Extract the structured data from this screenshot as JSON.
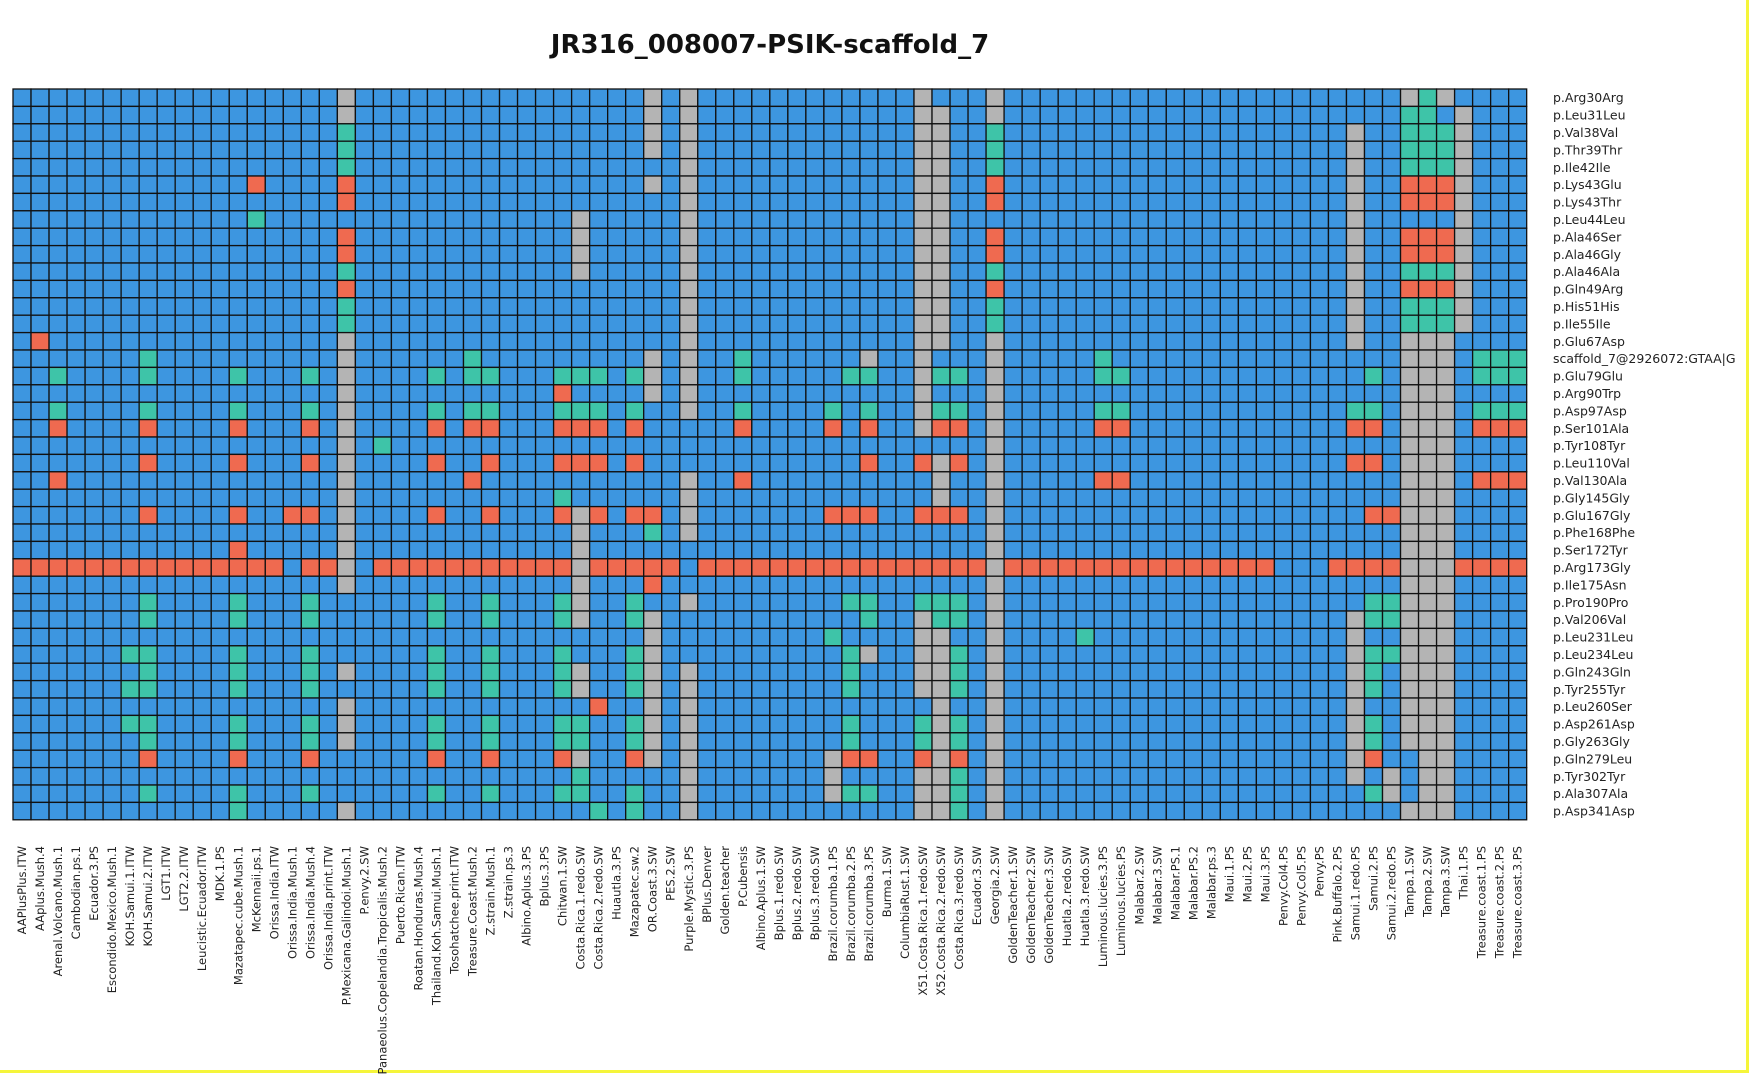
{
  "chart_data": {
    "type": "heatmap",
    "title": "JR316_008007-PSIK-scaffold_7",
    "colors": {
      "blue": "#3d96e0",
      "green": "#3ec4a8",
      "red": "#ef6a50",
      "gray": "#b4b4b4",
      "grid": "#111111"
    },
    "default_color": "blue",
    "columns": [
      "AAPlusPlus.ITW",
      "AAplus.Mush.4",
      "Arenal.Volcano.Mush.1",
      "Cambodian.ps.1",
      "Ecuador.3.PS",
      "Escondido.Mexico.Mush.1",
      "KOH.Samui.1.ITW",
      "KOH.Samui.2.ITW",
      "LGT1.ITW",
      "LGT2.2.ITW",
      "Leucistic.Ecuador.ITW",
      "MDK.1.PS",
      "Mazatapec.cube.Mush.1",
      "McKennaii.ps.1",
      "Orissa.India.ITW",
      "Orissa.India.Mush.1",
      "Orissa.India.Mush.4",
      "Orissa.India.print.ITW",
      "P.Mexicana.Galindoi.Mush.1",
      "P.envy.2.SW",
      "Panaeolus.Copelandia.Tropicalis.Mush.2",
      "Puerto.Rican.ITW",
      "Roatan.Honduras.Mush.4",
      "Thailand.Koh.Samui.Mush.1",
      "Tosohatchee.print.ITW",
      "Treasure.Coast.Mush.2",
      "Z.strain.Mush.1",
      "Z.strain.ps.3",
      "Albino.Aplus.3.PS",
      "Bplus.3.PS",
      "Chitwan.1.SW",
      "Costa.Rica.1.redo.SW",
      "Costa.Rica.2.redo.SW",
      "Huautla.3.PS",
      "Mazapatec.sw.2",
      "OR.Coast.3.SW",
      "PES.2.SW",
      "Purple.Mystic.3.PS",
      "BPlus.Denver",
      "Golden.teacher",
      "P.Cubensis",
      "Albino.Aplus.1.SW",
      "Bplus.1.redo.SW",
      "Bplus.2.redo.SW",
      "Bplus.3.redo.SW",
      "Brazil.corumba.1.PS",
      "Brazil.corumba.2.PS",
      "Brazil.corumba.3.PS",
      "Burma.1.SW",
      "ColumbiaRust.1.SW",
      "X51.Costa.Rica.1.redo.SW",
      "X52.Costa.Rica.2.redo.SW",
      "Costa.Rica.3.redo.SW",
      "Ecuador.3.SW",
      "Georgia.2.SW",
      "GoldenTeacher.1.SW",
      "GoldenTeacher.2.SW",
      "GoldenTeacher.3.SW",
      "Huatla.2.redo.SW",
      "Huatla.3.redo.SW",
      "Luminous.lucies.3.PS",
      "Luminous.lucies.PS",
      "Malabar.2.SW",
      "Malabar.3.SW",
      "Malabar.PS.1",
      "Malabar.PS.2",
      "Malabar.ps.3",
      "Maui.1.PS",
      "Maui.2.PS",
      "Maui.3.PS",
      "Penvy.Col4.PS",
      "Penvy.Col5.PS",
      "Penvy.PS",
      "Pink.Buffalo.2.PS",
      "Samui.1.redo.PS",
      "Samui.2.PS",
      "Samui.2.redo.PS",
      "Tampa.1.SW",
      "Tampa.2.SW",
      "Tampa.3.SW",
      "Thai.1.PS",
      "Treasure.coast.1.PS",
      "Treasure.coast.2.PS",
      "Treasure.coast.3.PS"
    ],
    "rows": [
      {
        "label": "p.Arg30Arg",
        "green": [
          79
        ],
        "red": [],
        "gray": [
          19,
          36,
          38,
          51,
          55,
          78,
          80
        ]
      },
      {
        "label": "p.Leu31Leu",
        "green": [
          78,
          79
        ],
        "red": [],
        "gray": [
          19,
          36,
          38,
          51,
          52,
          55,
          81
        ]
      },
      {
        "label": "p.Val38Val",
        "green": [
          19,
          55,
          78,
          79,
          80
        ],
        "red": [],
        "gray": [
          36,
          38,
          51,
          52,
          75,
          81
        ]
      },
      {
        "label": "p.Thr39Thr",
        "green": [
          19,
          55,
          78,
          79,
          80
        ],
        "red": [],
        "gray": [
          36,
          38,
          51,
          52,
          75,
          81
        ]
      },
      {
        "label": "p.Ile42Ile",
        "green": [
          19,
          55,
          78,
          79,
          80
        ],
        "red": [],
        "gray": [
          38,
          51,
          52,
          75,
          81
        ]
      },
      {
        "label": "p.Lys43Glu",
        "green": [],
        "red": [
          14,
          19,
          55,
          78,
          79,
          80
        ],
        "gray": [
          36,
          38,
          51,
          52,
          75,
          81
        ]
      },
      {
        "label": "p.Lys43Thr",
        "green": [],
        "red": [
          19,
          55,
          78,
          79,
          80
        ],
        "gray": [
          38,
          51,
          52,
          75,
          81
        ]
      },
      {
        "label": "p.Leu44Leu",
        "green": [
          14
        ],
        "red": [],
        "gray": [
          32,
          38,
          51,
          52,
          75,
          81
        ]
      },
      {
        "label": "p.Ala46Ser",
        "green": [],
        "red": [
          19,
          55,
          78,
          79,
          80
        ],
        "gray": [
          32,
          38,
          51,
          52,
          75,
          81
        ]
      },
      {
        "label": "p.Ala46Gly",
        "green": [],
        "red": [
          19,
          55,
          78,
          79,
          80
        ],
        "gray": [
          32,
          38,
          51,
          52,
          75,
          81
        ]
      },
      {
        "label": "p.Ala46Ala",
        "green": [
          19,
          55,
          78,
          79,
          80
        ],
        "red": [],
        "gray": [
          32,
          38,
          51,
          52,
          75,
          81
        ]
      },
      {
        "label": "p.Gln49Arg",
        "green": [],
        "red": [
          19,
          55,
          78,
          79,
          80
        ],
        "gray": [
          38,
          51,
          52,
          75,
          81
        ]
      },
      {
        "label": "p.His51His",
        "green": [
          19,
          55,
          78,
          79,
          80
        ],
        "red": [],
        "gray": [
          38,
          51,
          52,
          75,
          81
        ]
      },
      {
        "label": "p.Ile55Ile",
        "green": [
          19,
          55,
          78,
          79,
          80
        ],
        "red": [],
        "gray": [
          38,
          51,
          52,
          75,
          81
        ]
      },
      {
        "label": "p.Glu67Asp",
        "green": [],
        "red": [
          2
        ],
        "gray": [
          19,
          38,
          51,
          52,
          55,
          75,
          78,
          79,
          80
        ]
      },
      {
        "label": "scaffold_7@2926072:GTAA|G",
        "green": [
          8,
          26,
          41,
          61,
          82,
          83,
          84
        ],
        "red": [],
        "gray": [
          19,
          36,
          38,
          48,
          51,
          55,
          78,
          79,
          80
        ]
      },
      {
        "label": "p.Glu79Glu",
        "green": [
          3,
          8,
          13,
          17,
          24,
          26,
          27,
          31,
          32,
          33,
          35,
          41,
          47,
          48,
          52,
          53,
          61,
          62,
          76,
          82,
          83,
          84
        ],
        "red": [],
        "gray": [
          19,
          36,
          38,
          51,
          55,
          78,
          79,
          80
        ]
      },
      {
        "label": "p.Arg90Trp",
        "green": [],
        "red": [
          31
        ],
        "gray": [
          19,
          36,
          38,
          51,
          55,
          78,
          79,
          80
        ]
      },
      {
        "label": "p.Asp97Asp",
        "green": [
          3,
          8,
          13,
          17,
          24,
          26,
          27,
          31,
          32,
          33,
          35,
          41,
          46,
          48,
          52,
          53,
          61,
          62,
          75,
          76,
          82,
          83,
          84
        ],
        "red": [],
        "gray": [
          19,
          38,
          51,
          55,
          78,
          79,
          80
        ]
      },
      {
        "label": "p.Ser101Ala",
        "green": [],
        "red": [
          3,
          8,
          13,
          17,
          24,
          26,
          27,
          31,
          32,
          33,
          35,
          41,
          46,
          48,
          52,
          53,
          61,
          62,
          75,
          76,
          82,
          83,
          84
        ],
        "gray": [
          19,
          51,
          55,
          78,
          79,
          80
        ]
      },
      {
        "label": "p.Tyr108Tyr",
        "green": [
          21
        ],
        "red": [],
        "gray": [
          19,
          55,
          78,
          79,
          80
        ]
      },
      {
        "label": "p.Leu110Val",
        "green": [],
        "red": [
          8,
          13,
          17,
          24,
          27,
          31,
          32,
          33,
          35,
          48,
          51,
          53,
          75,
          76
        ],
        "gray": [
          19,
          52,
          55,
          78,
          79,
          80
        ]
      },
      {
        "label": "p.Val130Ala",
        "green": [],
        "red": [
          3,
          26,
          41,
          61,
          62,
          82,
          83,
          84
        ],
        "gray": [
          19,
          38,
          52,
          55,
          78,
          79,
          80
        ]
      },
      {
        "label": "p.Gly145Gly",
        "green": [
          31
        ],
        "red": [],
        "gray": [
          19,
          38,
          52,
          55,
          78,
          79,
          80
        ]
      },
      {
        "label": "p.Glu167Gly",
        "green": [],
        "red": [
          8,
          13,
          16,
          17,
          24,
          27,
          31,
          33,
          35,
          36,
          46,
          47,
          48,
          51,
          52,
          53,
          76,
          77
        ],
        "gray": [
          19,
          32,
          38,
          55,
          78,
          79,
          80
        ]
      },
      {
        "label": "p.Phe168Phe",
        "green": [
          36
        ],
        "red": [],
        "gray": [
          19,
          32,
          38,
          55,
          78,
          79,
          80
        ]
      },
      {
        "label": "p.Ser172Tyr",
        "green": [],
        "red": [
          13
        ],
        "gray": [
          19,
          32,
          55,
          78,
          79,
          80
        ]
      },
      {
        "label": "p.Arg173Gly",
        "green": [],
        "red": [
          1,
          2,
          3,
          4,
          5,
          6,
          7,
          8,
          9,
          10,
          11,
          12,
          13,
          14,
          15,
          17,
          18,
          21,
          22,
          23,
          24,
          25,
          26,
          27,
          28,
          29,
          30,
          31,
          33,
          34,
          35,
          36,
          37,
          39,
          40,
          41,
          42,
          43,
          44,
          45,
          46,
          47,
          48,
          49,
          50,
          51,
          52,
          53,
          54,
          56,
          57,
          58,
          59,
          60,
          61,
          62,
          63,
          64,
          65,
          66,
          67,
          68,
          69,
          70,
          74,
          75,
          76,
          77,
          81,
          82,
          83,
          84
        ],
        "gray": [
          19,
          32,
          55,
          78,
          79,
          80
        ]
      },
      {
        "label": "p.Ile175Asn",
        "green": [],
        "red": [
          36
        ],
        "gray": [
          19,
          32,
          55,
          78,
          79,
          80
        ]
      },
      {
        "label": "p.Pro190Pro",
        "green": [
          8,
          13,
          17,
          24,
          27,
          31,
          35,
          47,
          48,
          51,
          52,
          53,
          76,
          77
        ],
        "red": [],
        "gray": [
          32,
          38,
          55,
          78,
          79,
          80
        ]
      },
      {
        "label": "p.Val206Val",
        "green": [
          8,
          13,
          17,
          24,
          27,
          31,
          35,
          48,
          52,
          53,
          76,
          77
        ],
        "red": [],
        "gray": [
          32,
          36,
          51,
          55,
          75,
          78,
          79,
          80
        ]
      },
      {
        "label": "p.Leu231Leu",
        "green": [
          46,
          60
        ],
        "red": [],
        "gray": [
          36,
          51,
          52,
          55,
          75,
          78,
          79,
          80
        ]
      },
      {
        "label": "p.Leu234Leu",
        "green": [
          7,
          8,
          13,
          17,
          24,
          27,
          31,
          35,
          47,
          53,
          76,
          77
        ],
        "red": [],
        "gray": [
          36,
          48,
          51,
          52,
          55,
          75,
          78,
          79,
          80
        ]
      },
      {
        "label": "p.Gln243Gln",
        "green": [
          8,
          13,
          17,
          24,
          27,
          31,
          35,
          47,
          53,
          76
        ],
        "red": [],
        "gray": [
          19,
          32,
          36,
          38,
          51,
          52,
          55,
          75,
          78,
          79,
          80
        ]
      },
      {
        "label": "p.Tyr255Tyr",
        "green": [
          7,
          8,
          13,
          17,
          24,
          27,
          31,
          35,
          47,
          53,
          76
        ],
        "red": [],
        "gray": [
          32,
          36,
          38,
          51,
          52,
          55,
          75,
          78,
          79,
          80
        ]
      },
      {
        "label": "p.Leu260Ser",
        "green": [],
        "red": [
          33
        ],
        "gray": [
          19,
          36,
          38,
          52,
          55,
          75,
          78,
          79,
          80
        ]
      },
      {
        "label": "p.Asp261Asp",
        "green": [
          7,
          8,
          13,
          17,
          24,
          27,
          31,
          32,
          35,
          47,
          51,
          53,
          76
        ],
        "red": [],
        "gray": [
          19,
          36,
          38,
          52,
          55,
          75,
          78,
          79,
          80
        ]
      },
      {
        "label": "p.Gly263Gly",
        "green": [
          8,
          13,
          17,
          24,
          27,
          31,
          32,
          35,
          47,
          51,
          53,
          76
        ],
        "red": [],
        "gray": [
          19,
          36,
          38,
          52,
          55,
          75,
          78,
          79,
          80
        ]
      },
      {
        "label": "p.Gln279Leu",
        "green": [],
        "red": [
          8,
          13,
          17,
          24,
          27,
          31,
          35,
          47,
          48,
          51,
          53,
          76
        ],
        "gray": [
          32,
          36,
          38,
          46,
          52,
          55,
          75,
          79,
          80
        ]
      },
      {
        "label": "p.Tyr302Tyr",
        "green": [
          32,
          53
        ],
        "red": [],
        "gray": [
          38,
          46,
          51,
          52,
          55,
          75,
          77,
          79,
          80
        ]
      },
      {
        "label": "p.Ala307Ala",
        "green": [
          8,
          13,
          17,
          24,
          27,
          31,
          32,
          35,
          47,
          48,
          53,
          76
        ],
        "red": [],
        "gray": [
          38,
          46,
          51,
          52,
          55,
          77,
          79,
          80
        ]
      },
      {
        "label": "p.Asp341Asp",
        "green": [
          13,
          33,
          35,
          53
        ],
        "red": [],
        "gray": [
          19,
          38,
          51,
          52,
          55,
          78,
          79,
          80
        ]
      }
    ]
  }
}
